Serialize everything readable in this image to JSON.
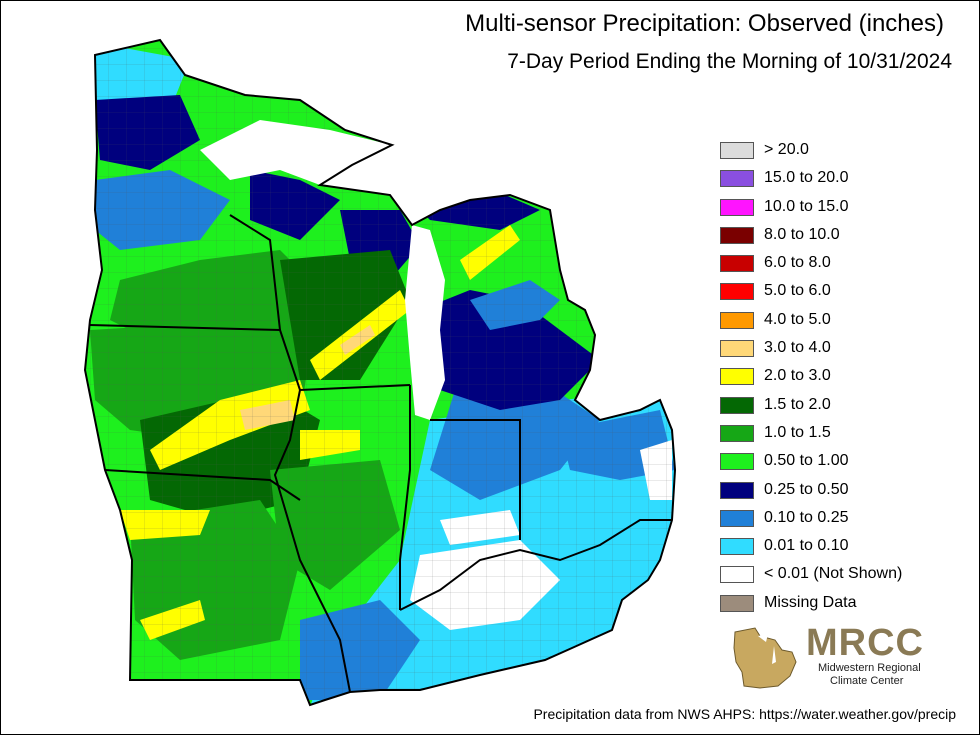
{
  "header": {
    "title": "Multi-sensor Precipitation: Observed (inches)",
    "subtitle": "7-Day Period Ending the Morning of 10/31/2024"
  },
  "legend": [
    {
      "label": "> 20.0",
      "color": "#dcdcdc"
    },
    {
      "label": "15.0 to 20.0",
      "color": "#8a4fe0"
    },
    {
      "label": "10.0 to 15.0",
      "color": "#ff14ff"
    },
    {
      "label": "8.0 to 10.0",
      "color": "#7a0000"
    },
    {
      "label": "6.0 to 8.0",
      "color": "#c80000"
    },
    {
      "label": "5.0 to 6.0",
      "color": "#ff0000"
    },
    {
      "label": "4.0 to 5.0",
      "color": "#ff9900"
    },
    {
      "label": "3.0 to 4.0",
      "color": "#ffd878"
    },
    {
      "label": "2.0 to 3.0",
      "color": "#ffff00"
    },
    {
      "label": "1.5 to 2.0",
      "color": "#046804"
    },
    {
      "label": "1.0 to 1.5",
      "color": "#16a716"
    },
    {
      "label": "0.50 to 1.00",
      "color": "#1ef01e"
    },
    {
      "label": "0.25 to 0.50",
      "color": "#00007e"
    },
    {
      "label": "0.10 to 0.25",
      "color": "#2080d8"
    },
    {
      "label": "0.01 to 0.10",
      "color": "#30dcff"
    },
    {
      "label": "< 0.01 (Not Shown)",
      "color": "#ffffff"
    },
    {
      "label": "Missing Data",
      "color": "#9c8c7c"
    }
  ],
  "logo": {
    "acronym": "MRCC",
    "name_line1": "Midwestern Regional",
    "name_line2": "Climate Center"
  },
  "credit": "Precipitation data from NWS AHPS: https://water.weather.gov/precip"
}
